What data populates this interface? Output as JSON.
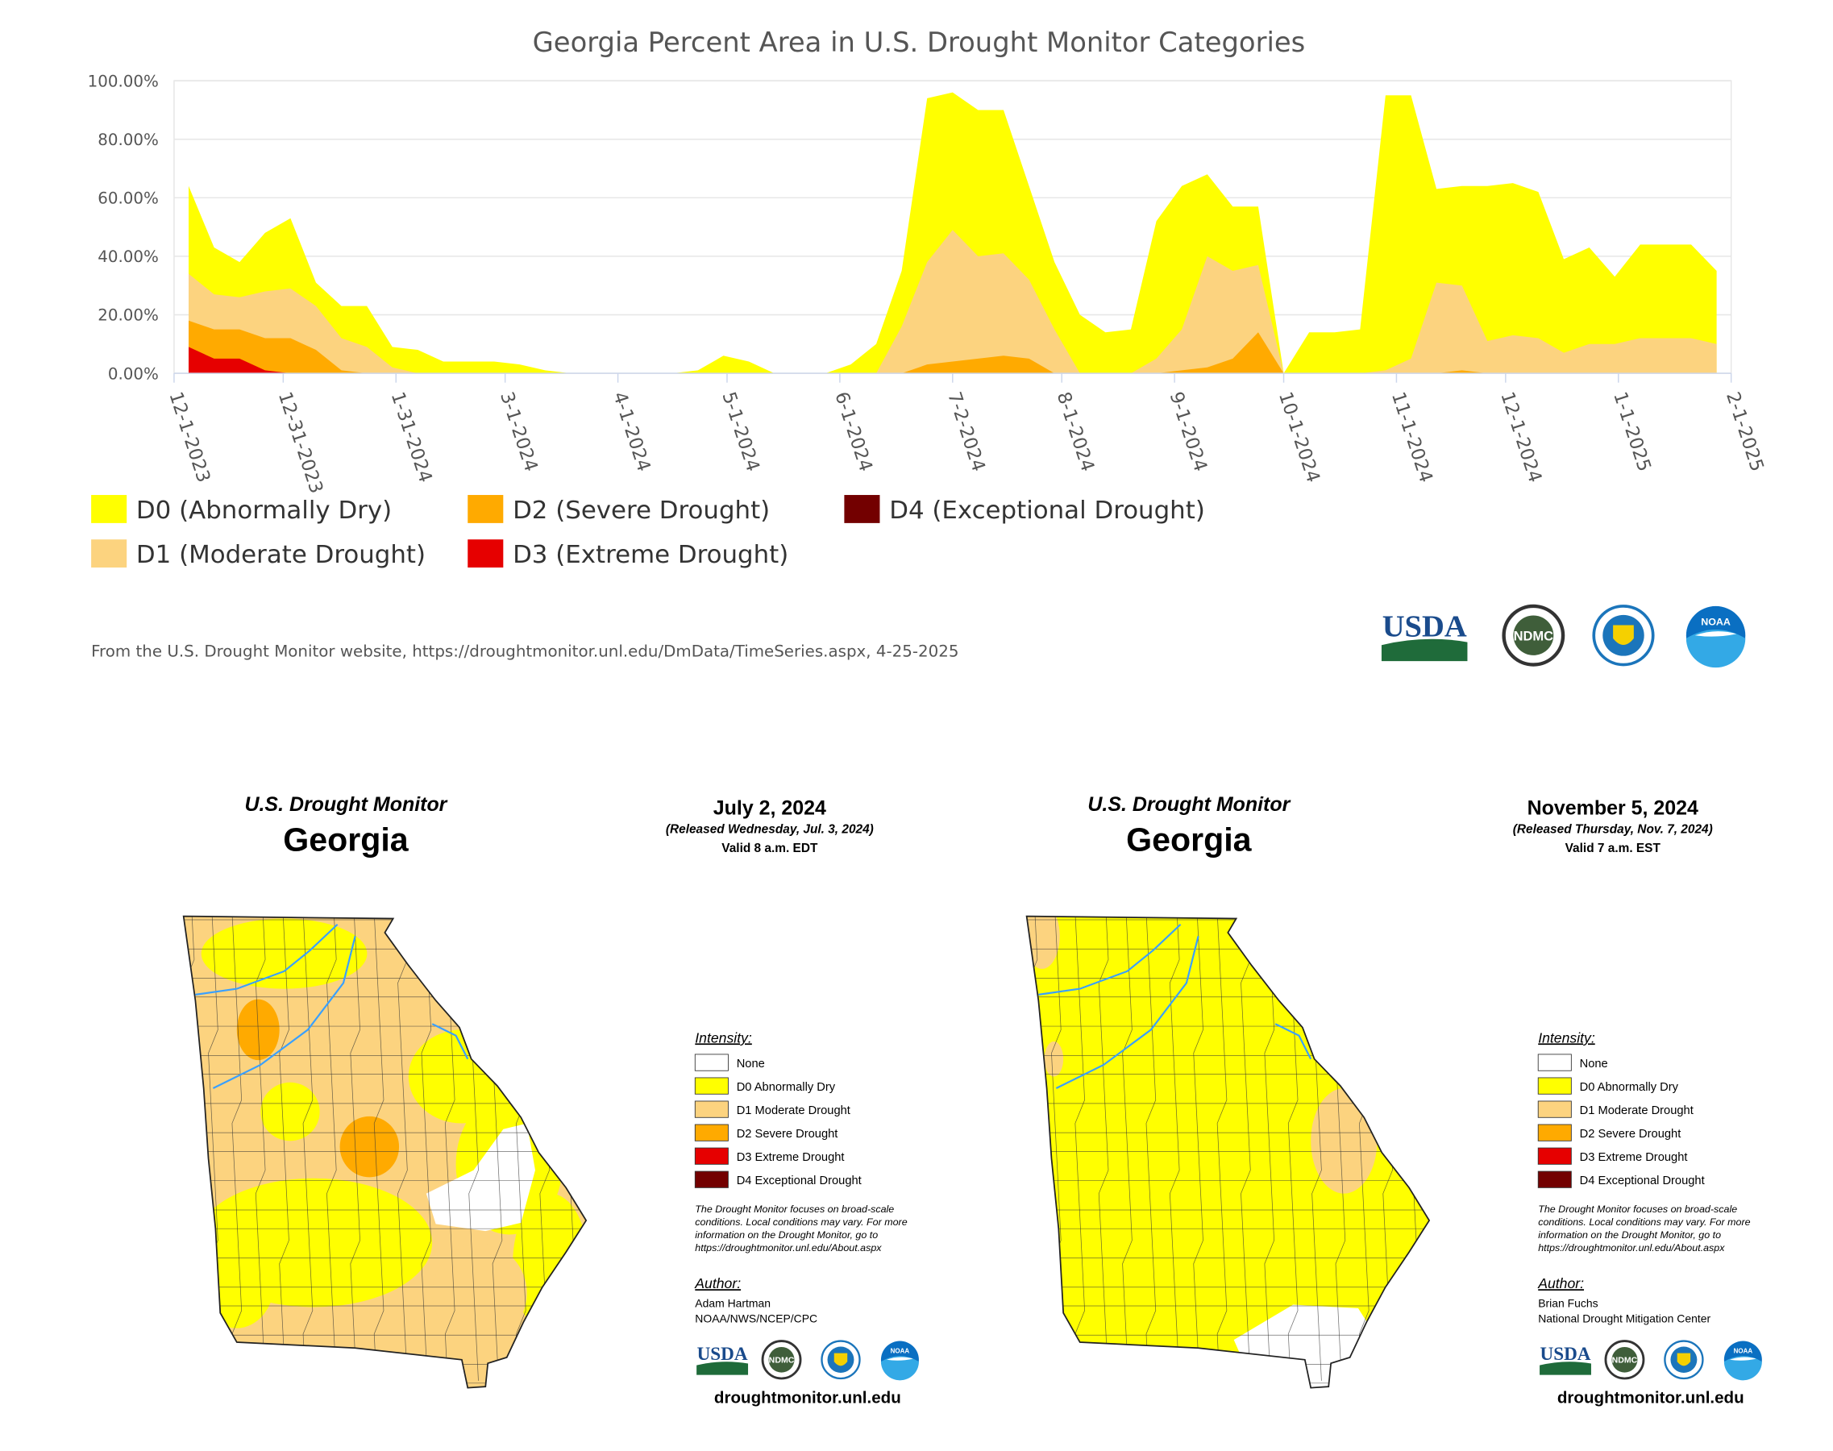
{
  "chart_data": {
    "type": "area",
    "title": "Georgia Percent Area in U.S. Drought Monitor Categories",
    "x": [
      "12-5-2023",
      "12-12-2023",
      "12-19-2023",
      "12-26-2023",
      "1-2-2024",
      "1-9-2024",
      "1-16-2024",
      "1-23-2024",
      "1-30-2024",
      "2-6-2024",
      "2-13-2024",
      "2-20-2024",
      "2-27-2024",
      "3-5-2024",
      "3-12-2024",
      "3-19-2024",
      "3-26-2024",
      "4-2-2024",
      "4-9-2024",
      "4-16-2024",
      "4-23-2024",
      "4-30-2024",
      "5-7-2024",
      "5-14-2024",
      "5-21-2024",
      "5-28-2024",
      "6-4-2024",
      "6-11-2024",
      "6-18-2024",
      "6-25-2024",
      "7-2-2024",
      "7-9-2024",
      "7-16-2024",
      "7-23-2024",
      "7-30-2024",
      "8-6-2024",
      "8-13-2024",
      "8-20-2024",
      "8-27-2024",
      "9-3-2024",
      "9-10-2024",
      "9-17-2024",
      "9-24-2024",
      "10-1-2024",
      "10-8-2024",
      "10-15-2024",
      "10-22-2024",
      "10-29-2024",
      "11-5-2024",
      "11-12-2024",
      "11-19-2024",
      "11-26-2024",
      "12-3-2024",
      "12-10-2024",
      "12-17-2024",
      "12-24-2024",
      "12-31-2024",
      "1-7-2025",
      "1-14-2025",
      "1-21-2025",
      "1-28-2025"
    ],
    "series": [
      {
        "name": "D0 (Abnormally Dry)",
        "color": "#ffff00",
        "values": [
          64,
          43,
          38,
          48,
          53,
          31,
          23,
          23,
          9,
          8,
          4,
          4,
          4,
          3,
          1,
          0,
          0,
          0,
          0,
          0,
          1,
          6,
          4,
          0,
          0,
          0,
          3,
          10,
          35,
          94,
          96,
          90,
          90,
          64,
          38,
          20,
          14,
          15,
          52,
          64,
          68,
          57,
          57,
          0,
          14,
          14,
          15,
          95,
          95,
          63,
          64,
          64,
          65,
          62,
          39,
          43,
          33,
          44,
          44,
          44,
          35
        ]
      },
      {
        "name": "D1 (Moderate Drought)",
        "color": "#fcd37f",
        "values": [
          34,
          27,
          26,
          28,
          29,
          23,
          12,
          9,
          2,
          0,
          0,
          0,
          0,
          0,
          0,
          0,
          0,
          0,
          0,
          0,
          0,
          0,
          0,
          0,
          0,
          0,
          0,
          0,
          16,
          38,
          49,
          40,
          41,
          32,
          15,
          0,
          0,
          0,
          5,
          15,
          40,
          35,
          37,
          0,
          0,
          0,
          0,
          1,
          5,
          31,
          30,
          11,
          13,
          12,
          7,
          10,
          10,
          12,
          12,
          12,
          10
        ]
      },
      {
        "name": "D2 (Severe Drought)",
        "color": "#ffaa00",
        "values": [
          18,
          15,
          15,
          12,
          12,
          8,
          1,
          0,
          0,
          0,
          0,
          0,
          0,
          0,
          0,
          0,
          0,
          0,
          0,
          0,
          0,
          0,
          0,
          0,
          0,
          0,
          0,
          0,
          0,
          3,
          4,
          5,
          6,
          5,
          0,
          0,
          0,
          0,
          0,
          1,
          2,
          5,
          14,
          0,
          0,
          0,
          0,
          0,
          0,
          0,
          1,
          0,
          0,
          0,
          0,
          0,
          0,
          0,
          0,
          0,
          0
        ]
      },
      {
        "name": "D3 (Extreme Drought)",
        "color": "#e60000",
        "values": [
          9,
          5,
          5,
          1,
          0,
          0,
          0,
          0,
          0,
          0,
          0,
          0,
          0,
          0,
          0,
          0,
          0,
          0,
          0,
          0,
          0,
          0,
          0,
          0,
          0,
          0,
          0,
          0,
          0,
          0,
          0,
          0,
          0,
          0,
          0,
          0,
          0,
          0,
          0,
          0,
          0,
          0,
          0,
          0,
          0,
          0,
          0,
          0,
          0,
          0,
          0,
          0,
          0,
          0,
          0,
          0,
          0,
          0,
          0,
          0,
          0
        ]
      },
      {
        "name": "D4 (Exceptional Drought)",
        "color": "#730000",
        "values": [
          0,
          0,
          0,
          0,
          0,
          0,
          0,
          0,
          0,
          0,
          0,
          0,
          0,
          0,
          0,
          0,
          0,
          0,
          0,
          0,
          0,
          0,
          0,
          0,
          0,
          0,
          0,
          0,
          0,
          0,
          0,
          0,
          0,
          0,
          0,
          0,
          0,
          0,
          0,
          0,
          0,
          0,
          0,
          0,
          0,
          0,
          0,
          0,
          0,
          0,
          0,
          0,
          0,
          0,
          0,
          0,
          0,
          0,
          0,
          0,
          0
        ]
      }
    ],
    "xlim": [
      "12-1-2023",
      "2-1-2025"
    ],
    "xticks": [
      "12-1-2023",
      "12-31-2023",
      "1-31-2024",
      "3-1-2024",
      "4-1-2024",
      "5-1-2024",
      "6-1-2024",
      "7-2-2024",
      "8-1-2024",
      "9-1-2024",
      "10-1-2024",
      "11-1-2024",
      "12-1-2024",
      "1-1-2025",
      "2-1-2025"
    ],
    "ylim": [
      0,
      100
    ],
    "yticks": [
      {
        "value": 0,
        "label": "0.00%"
      },
      {
        "value": 20,
        "label": "20.00%"
      },
      {
        "value": 40,
        "label": "40.00%"
      },
      {
        "value": 60,
        "label": "60.00%"
      },
      {
        "value": 80,
        "label": "80.00%"
      },
      {
        "value": 100,
        "label": "100.00%"
      }
    ],
    "grid": true,
    "legend": "bottom",
    "source": "From the U.S. Drought Monitor website, https://droughtmonitor.unl.edu/DmData/TimeSeries.aspx, 4-25-2025"
  },
  "logos": [
    "USDA",
    "NDMC",
    "NOAA"
  ],
  "maps": [
    {
      "heading": "U.S. Drought Monitor",
      "state": "Georgia",
      "date": "July 2, 2024",
      "released": "(Released Wednesday, Jul. 3, 2024)",
      "valid": "Valid 8 a.m. EDT",
      "legend_title": "Intensity:",
      "legend": [
        {
          "label": "None",
          "color": "#ffffff"
        },
        {
          "label": "D0 Abnormally Dry",
          "color": "#ffff00"
        },
        {
          "label": "D1 Moderate Drought",
          "color": "#fcd37f"
        },
        {
          "label": "D2 Severe Drought",
          "color": "#ffaa00"
        },
        {
          "label": "D3 Extreme Drought",
          "color": "#e60000"
        },
        {
          "label": "D4 Exceptional Drought",
          "color": "#730000"
        }
      ],
      "note": [
        "The Drought Monitor focuses on broad-scale",
        "conditions. Local conditions may vary. For more",
        "information on the Drought Monitor, go to",
        "https://droughtmonitor.unl.edu/About.aspx"
      ],
      "author_title": "Author:",
      "authors": [
        "Adam Hartman",
        "NOAA/NWS/NCEP/CPC"
      ],
      "url": "droughtmonitor.unl.edu"
    },
    {
      "heading": "U.S. Drought Monitor",
      "state": "Georgia",
      "date": "November 5, 2024",
      "released": "(Released Thursday, Nov. 7, 2024)",
      "valid": "Valid 7 a.m. EST",
      "legend_title": "Intensity:",
      "legend": [
        {
          "label": "None",
          "color": "#ffffff"
        },
        {
          "label": "D0 Abnormally Dry",
          "color": "#ffff00"
        },
        {
          "label": "D1 Moderate Drought",
          "color": "#fcd37f"
        },
        {
          "label": "D2 Severe Drought",
          "color": "#ffaa00"
        },
        {
          "label": "D3 Extreme Drought",
          "color": "#e60000"
        },
        {
          "label": "D4 Exceptional Drought",
          "color": "#730000"
        }
      ],
      "note": [
        "The Drought Monitor focuses on broad-scale",
        "conditions. Local conditions may vary. For more",
        "information on the Drought Monitor, go to",
        "https://droughtmonitor.unl.edu/About.aspx"
      ],
      "author_title": "Author:",
      "authors": [
        "Brian Fuchs",
        "National Drought Mitigation Center"
      ],
      "url": "droughtmonitor.unl.edu"
    }
  ]
}
